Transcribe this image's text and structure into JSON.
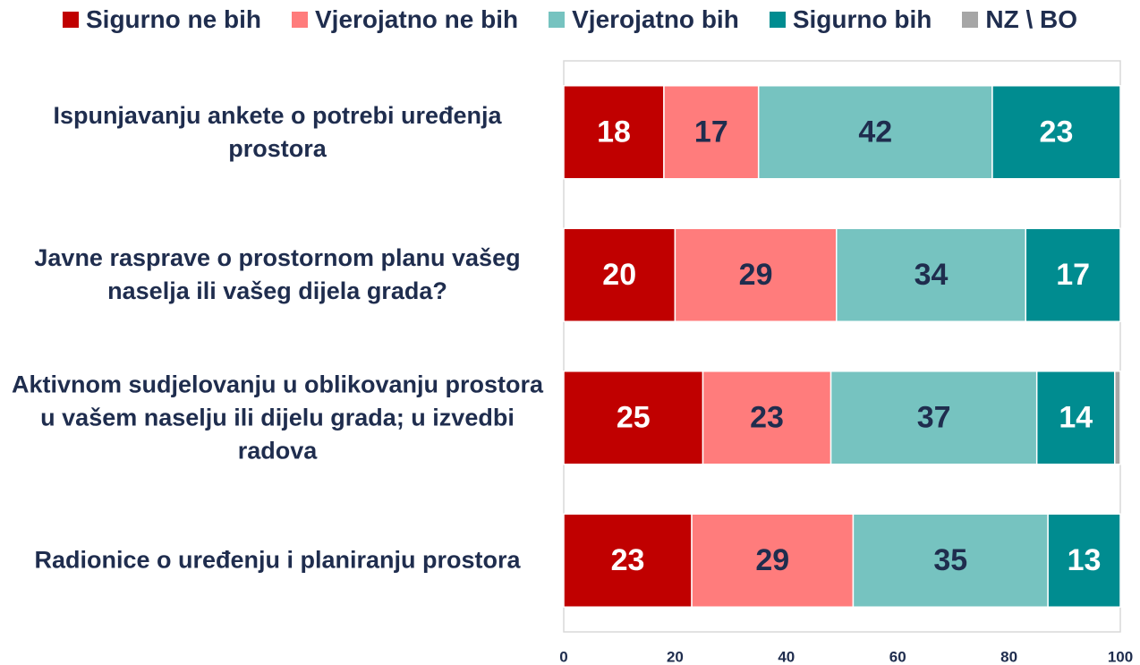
{
  "chart_data": {
    "type": "stacked_barh",
    "categories": [
      "Ispunjavanju ankete o potrebi uređenja prostora",
      "Javne rasprave o prostornom planu vašeg naselja ili vašeg dijela grada?",
      "Aktivnom sudjelovanju u oblikovanju prostora u vašem naselju ili dijelu grada; u izvedbi radova",
      "Radionice o uređenju i planiranju prostora"
    ],
    "series": [
      {
        "name": "Sigurno ne bih",
        "color": "#c00000",
        "values": [
          18,
          20,
          25,
          23
        ]
      },
      {
        "name": "Vjerojatno ne bih",
        "color": "#ff7c7c",
        "values": [
          17,
          29,
          23,
          29
        ]
      },
      {
        "name": "Vjerojatno bih",
        "color": "#76c3c0",
        "values": [
          42,
          34,
          37,
          35
        ]
      },
      {
        "name": "Sigurno bih",
        "color": "#008c90",
        "values": [
          23,
          17,
          14,
          13
        ]
      },
      {
        "name": "NZ \\ BO",
        "color": "#a6a6a6",
        "values": [
          0,
          0,
          1,
          0
        ]
      }
    ],
    "xlim": [
      0,
      100
    ],
    "xticks": [
      0,
      20,
      40,
      60,
      80,
      100
    ],
    "legend": "top"
  }
}
